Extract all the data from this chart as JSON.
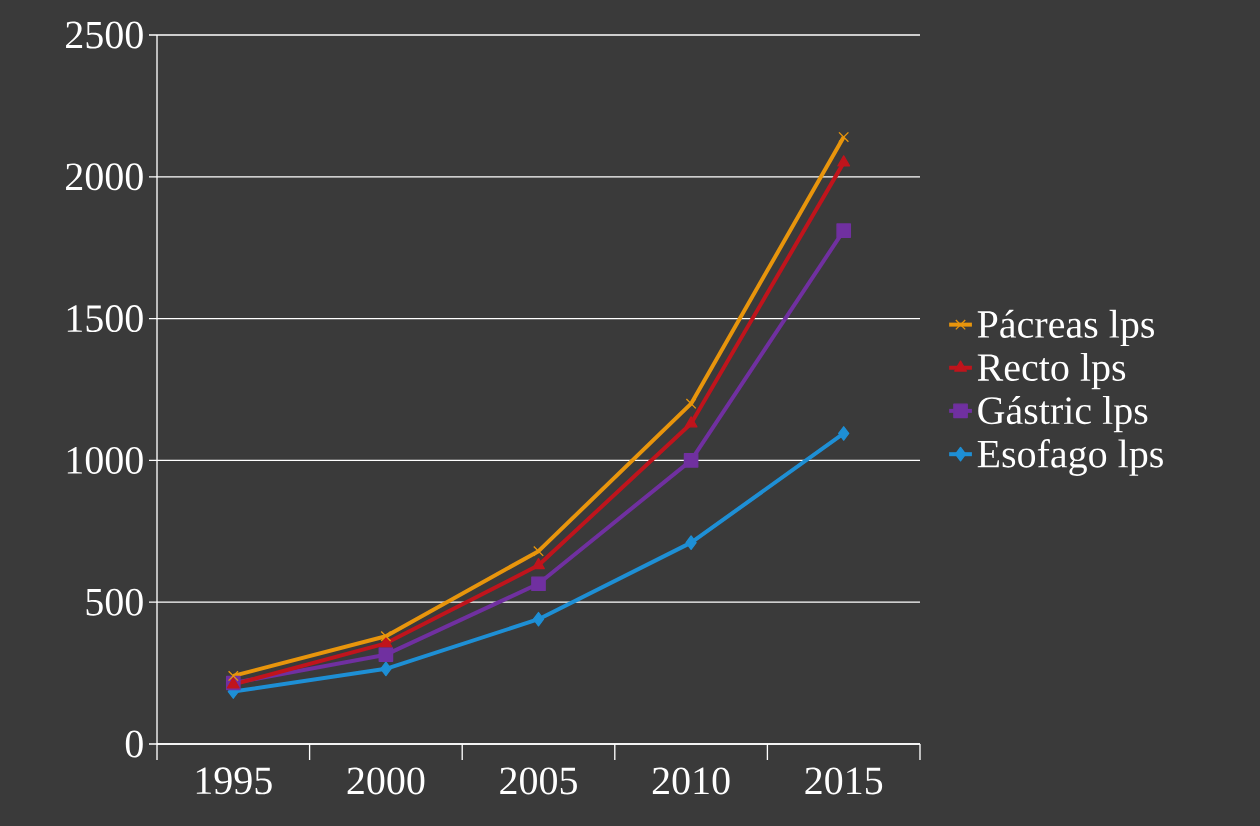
{
  "chart_data": {
    "type": "line",
    "categories": [
      "1995",
      "2000",
      "2005",
      "2010",
      "2015"
    ],
    "series": [
      {
        "name": "Pácreas lps",
        "color": "#e8950c",
        "marker": "cross",
        "values": [
          240,
          380,
          680,
          1200,
          2140
        ]
      },
      {
        "name": "Recto lps",
        "color": "#c0141c",
        "marker": "triangle",
        "values": [
          210,
          355,
          630,
          1130,
          2050
        ]
      },
      {
        "name": "Gástric lps",
        "color": "#7030a0",
        "marker": "square",
        "values": [
          215,
          315,
          565,
          1000,
          1810
        ]
      },
      {
        "name": "Esofago lps",
        "color": "#1e8fd5",
        "marker": "diamond",
        "values": [
          185,
          265,
          440,
          710,
          1095
        ]
      }
    ],
    "ylim": [
      0,
      2500
    ],
    "yticks": [
      0,
      500,
      1000,
      1500,
      2000,
      2500
    ],
    "grid": "y",
    "legend": "right",
    "line_style": "solid"
  }
}
